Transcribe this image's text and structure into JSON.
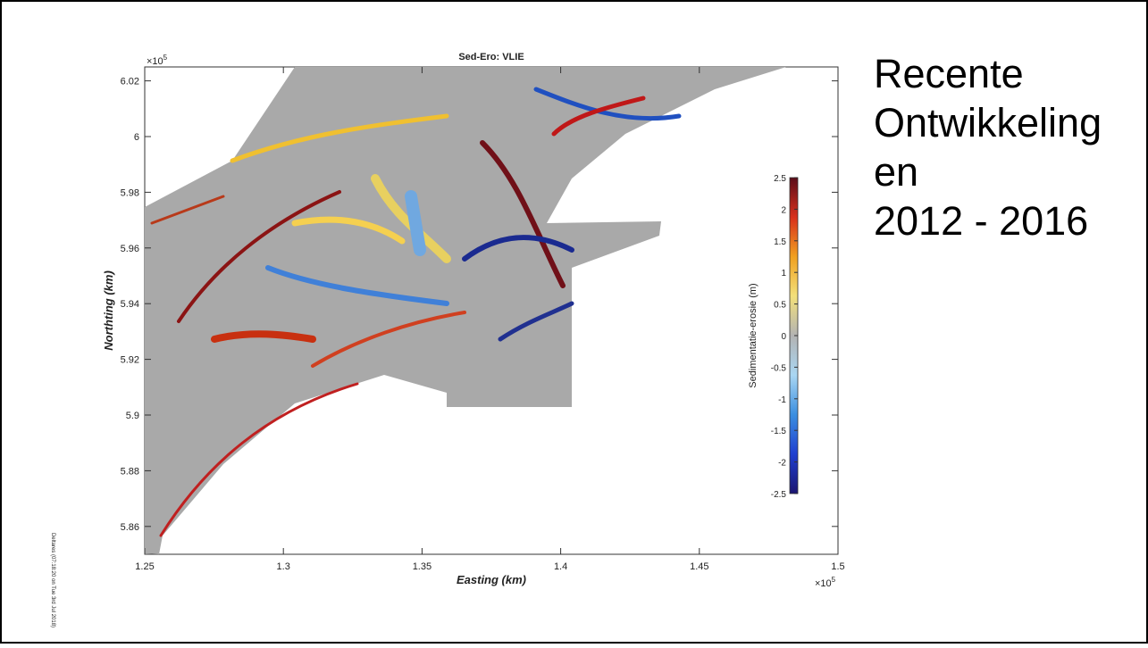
{
  "slide_title": [
    "Recente",
    "Ontwikkeling",
    "en",
    "2012 - 2016"
  ],
  "side_note": "Deltares (07:18:20 on Tue 3rd Jul 2018)",
  "chart_data": {
    "type": "heatmap",
    "title": "Sed-Ero: VLIE",
    "x_label": "Easting (km)",
    "y_label": "Northting (km)",
    "x_multiplier": {
      "base": "×10",
      "power": "5"
    },
    "y_multiplier": {
      "base": "×10",
      "power": "5"
    },
    "xlim": [
      125000,
      150000
    ],
    "xticks": [
      {
        "value": 125000,
        "label": "1.25"
      },
      {
        "value": 130000,
        "label": "1.3"
      },
      {
        "value": 135000,
        "label": "1.35"
      },
      {
        "value": 140000,
        "label": "1.4"
      },
      {
        "value": 145000,
        "label": "1.45"
      },
      {
        "value": 150000,
        "label": "1.5"
      }
    ],
    "ylim": [
      585000,
      602500
    ],
    "yticks": [
      {
        "value": 586000,
        "label": "5.86"
      },
      {
        "value": 588000,
        "label": "5.88"
      },
      {
        "value": 590000,
        "label": "5.9"
      },
      {
        "value": 592000,
        "label": "5.92"
      },
      {
        "value": 594000,
        "label": "5.94"
      },
      {
        "value": 596000,
        "label": "5.96"
      },
      {
        "value": 598000,
        "label": "5.98"
      },
      {
        "value": 600000,
        "label": "6"
      },
      {
        "value": 602000,
        "label": "6.02"
      }
    ],
    "colorbar": {
      "label": "Sedimentatie-erosie (m)",
      "clim": [
        -2.5,
        2.5
      ],
      "ticks": [
        -2.5,
        -2,
        -1.5,
        -1,
        -0.5,
        0,
        0.5,
        1,
        1.5,
        2,
        2.5
      ],
      "colormap": [
        "#1b1570",
        "#1f3fd0",
        "#3b8fe0",
        "#a9d6f2",
        "#b3b3b3",
        "#f3e07a",
        "#f0a020",
        "#d8301c",
        "#5a0d1a"
      ]
    }
  }
}
